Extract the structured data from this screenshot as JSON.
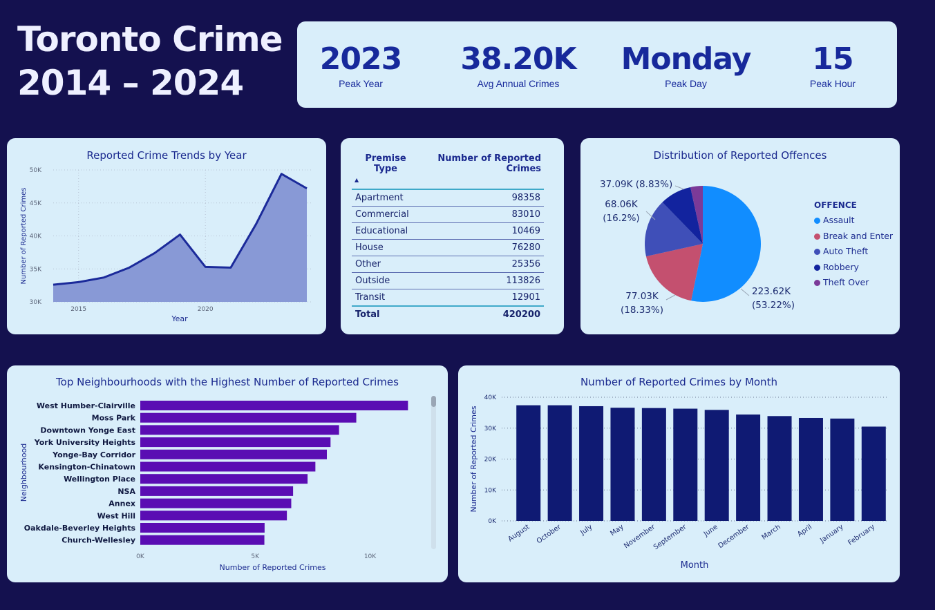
{
  "header": {
    "title_line1": "Toronto Crime",
    "title_line2": "2014 – 2024"
  },
  "kpis": [
    {
      "value": "2023",
      "label": "Peak Year"
    },
    {
      "value": "38.20K",
      "label": "Avg Annual Crimes"
    },
    {
      "value": "Monday",
      "label": "Peak Day"
    },
    {
      "value": "15",
      "label": "Peak Hour"
    }
  ],
  "colors": {
    "background": "#14114f",
    "panel": "#d9eefa",
    "accent": "#17299b",
    "area_fill": "#8899d6",
    "area_line": "#1b2a9a",
    "bar_purple": "#5a0db3",
    "bar_navy": "#0f1a73"
  },
  "chart_data": [
    {
      "type": "area",
      "title": "Reported Crime Trends by Year",
      "xlabel": "Year",
      "ylabel": "Number of Reported Crimes",
      "x": [
        2014,
        2015,
        2016,
        2017,
        2018,
        2019,
        2020,
        2021,
        2022,
        2023,
        2024
      ],
      "values": [
        32600,
        33000,
        33700,
        35200,
        37400,
        40200,
        35300,
        35200,
        41800,
        49400,
        47200
      ],
      "ylim": [
        30000,
        50000
      ],
      "yticks": [
        "30K",
        "35K",
        "40K",
        "45K",
        "50K"
      ],
      "xticks": [
        "2015",
        "2020"
      ],
      "grid": true
    },
    {
      "type": "table",
      "columns": [
        "Premise Type",
        "Number of Reported Crimes"
      ],
      "rows": [
        [
          "Apartment",
          "98358"
        ],
        [
          "Commercial",
          "83010"
        ],
        [
          "Educational",
          "10469"
        ],
        [
          "House",
          "76280"
        ],
        [
          "Other",
          "25356"
        ],
        [
          "Outside",
          "113826"
        ],
        [
          "Transit",
          "12901"
        ]
      ],
      "total": [
        "Total",
        "420200"
      ]
    },
    {
      "type": "pie",
      "title": "Distribution of Reported Offences",
      "legend_title": "OFFENCE",
      "legend_position": "right",
      "categories": [
        "Assault",
        "Break and Enter",
        "Auto Theft",
        "Robbery",
        "Theft Over"
      ],
      "values": [
        223620,
        77030,
        68060,
        37090,
        14400
      ],
      "percents": [
        53.22,
        18.33,
        16.2,
        8.83,
        3.42
      ],
      "colors": [
        "#118dff",
        "#c4506f",
        "#3f4fb8",
        "#12239e",
        "#7b3a98"
      ],
      "labels": [
        {
          "line1": "223.62K",
          "line2": "(53.22%)"
        },
        {
          "line1": "77.03K",
          "line2": "(18.33%)"
        },
        {
          "line1": "68.06K",
          "line2": "(16.2%)"
        },
        {
          "line1": "37.09K (8.83%)",
          "line2": ""
        }
      ]
    },
    {
      "type": "bar",
      "orientation": "horizontal",
      "title": "Top Neighbourhoods with the Highest Number of Reported Crimes",
      "xlabel": "Number of Reported Crimes",
      "ylabel": "Neighbourhood",
      "categories": [
        "West Humber-Clairville",
        "Moss Park",
        "Downtown Yonge East",
        "York University Heights",
        "Yonge-Bay Corridor",
        "Kensington-Chinatown",
        "Wellington Place",
        "NSA",
        "Annex",
        "West Hill",
        "Oakdale-Beverley Heights",
        "Church-Wellesley"
      ],
      "values": [
        11650,
        9400,
        8650,
        8280,
        8120,
        7620,
        7280,
        6650,
        6570,
        6380,
        5410,
        5400
      ],
      "xlim": [
        0,
        12000
      ],
      "xticks": [
        "0K",
        "5K",
        "10K"
      ]
    },
    {
      "type": "bar",
      "title": "Number of Reported Crimes by Month",
      "xlabel": "Month",
      "ylabel": "Number of Reported Crimes",
      "categories": [
        "August",
        "October",
        "July",
        "May",
        "November",
        "September",
        "June",
        "December",
        "March",
        "April",
        "January",
        "February"
      ],
      "values": [
        37400,
        37400,
        37100,
        36600,
        36500,
        36300,
        35900,
        34400,
        33900,
        33300,
        33100,
        30500
      ],
      "ylim": [
        0,
        40000
      ],
      "yticks": [
        "0K",
        "10K",
        "20K",
        "30K",
        "40K"
      ],
      "grid": true
    }
  ]
}
